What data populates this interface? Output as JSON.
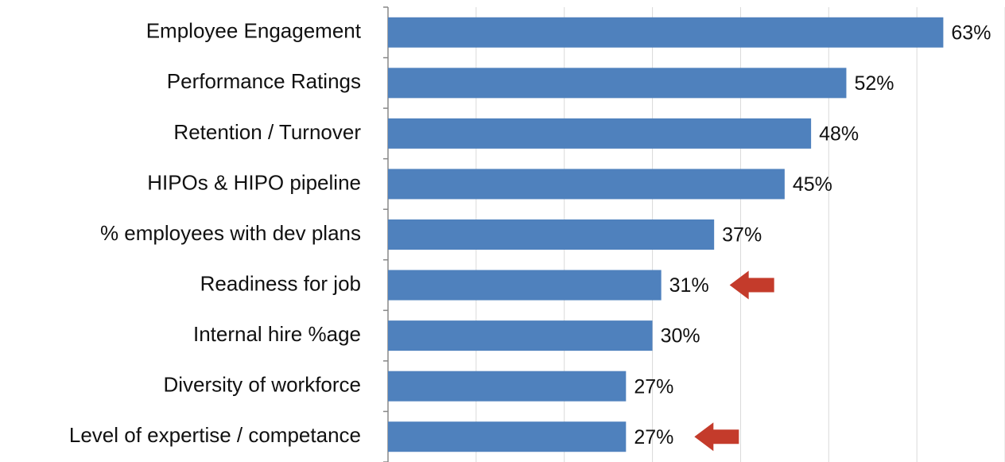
{
  "chart_data": {
    "type": "hbar",
    "categories": [
      "Employee Engagement",
      "Performance Ratings",
      "Retention / Turnover",
      "HIPOs & HIPO pipeline",
      "% employees with dev plans",
      "Readiness for job",
      "Internal hire %age",
      "Diversity of workforce",
      "Level of expertise / competance"
    ],
    "values": [
      63,
      52,
      48,
      45,
      37,
      31,
      30,
      27,
      27
    ],
    "value_labels": [
      "63%",
      "52%",
      "48%",
      "45%",
      "37%",
      "31%",
      "30%",
      "27%",
      "27%"
    ],
    "color": "#4f81bd",
    "xlim": [
      0,
      70
    ],
    "xticks": [
      0,
      10,
      20,
      30,
      40,
      50,
      60,
      70
    ],
    "grid": true,
    "highlighted": [
      "Readiness for job",
      "Level of expertise / competance"
    ],
    "highlight_color": "#c43b2b"
  }
}
